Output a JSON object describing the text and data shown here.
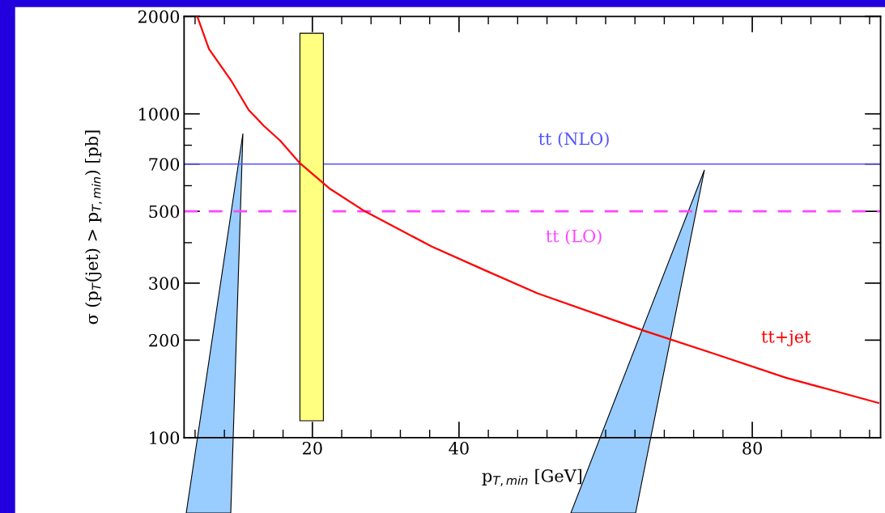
{
  "chart_data": {
    "type": "line",
    "xlabel": "p$_{T,min}$ [GeV]",
    "ylabel": "σ (p$_{T}$(jet) > p$_{T,min}$) [pb]",
    "log": "y",
    "xlim": [
      2.5,
      97.5
    ],
    "ylim": [
      100,
      2000
    ],
    "xticks": [
      20,
      40,
      80
    ],
    "yticks": [
      100,
      200,
      300,
      500,
      700,
      1000,
      2000
    ],
    "grid": false,
    "legend": false,
    "series": [
      {
        "name": "tt+jet",
        "color": "#ff0000",
        "x": [
          4.3,
          5.9,
          9.0,
          11.3,
          13.4,
          15.6,
          18.3,
          22.3,
          27.1,
          36.3,
          43.5,
          50.7,
          65.2,
          75.0,
          84.6,
          97.2
        ],
        "values": [
          2000,
          1585,
          1259,
          1029,
          917,
          827,
          704,
          589,
          501,
          389,
          329,
          279,
          214,
          181,
          153,
          128
        ]
      }
    ],
    "ref_lines": [
      {
        "axis": "y",
        "value": 700,
        "label": "tt (NLO)",
        "color": "#5555ff",
        "line_style": "solid"
      },
      {
        "axis": "y",
        "value": 500,
        "label": "tt (LO)",
        "color": "#ff44ff",
        "line_style": "dashed"
      }
    ],
    "bands": [
      {
        "axis": "x",
        "from": 18.3,
        "to": 21.5,
        "color": "#ffff80"
      }
    ]
  }
}
